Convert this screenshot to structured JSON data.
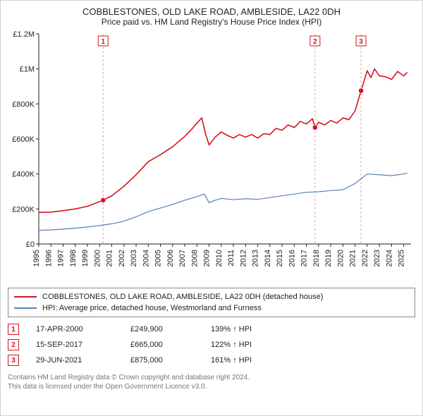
{
  "title_line1": "COBBLESTONES, OLD LAKE ROAD, AMBLESIDE, LA22 0DH",
  "title_line2": "Price paid vs. HM Land Registry's House Price Index (HPI)",
  "chart": {
    "type": "line",
    "background_color": "#ffffff",
    "axis_color": "#222222",
    "font_size_axis": 11,
    "font_size_title": 13,
    "xlim": [
      1995,
      2025.6
    ],
    "ylim": [
      0,
      1200000
    ],
    "yticks": [
      0,
      200000,
      400000,
      600000,
      800000,
      1000000,
      1200000
    ],
    "ytick_labels": [
      "£0",
      "£200K",
      "£400K",
      "£600K",
      "£800K",
      "£1M",
      "£1.2M"
    ],
    "xticks": [
      1995,
      1996,
      1997,
      1998,
      1999,
      2000,
      2001,
      2002,
      2003,
      2004,
      2005,
      2006,
      2007,
      2008,
      2009,
      2010,
      2011,
      2012,
      2013,
      2014,
      2015,
      2016,
      2017,
      2018,
      2019,
      2020,
      2021,
      2022,
      2023,
      2024,
      2025
    ],
    "series": [
      {
        "name": "COBBLESTONES, OLD LAKE ROAD, AMBLESIDE, LA22 0DH (detached house)",
        "color": "#d4141e",
        "line_width": 1.6,
        "points": [
          [
            1995,
            180000
          ],
          [
            1996,
            182000
          ],
          [
            1997,
            190000
          ],
          [
            1998,
            200000
          ],
          [
            1999,
            215000
          ],
          [
            2000.29,
            249900
          ],
          [
            2001,
            275000
          ],
          [
            2002,
            330000
          ],
          [
            2003,
            395000
          ],
          [
            2004,
            470000
          ],
          [
            2005,
            510000
          ],
          [
            2006,
            555000
          ],
          [
            2007,
            615000
          ],
          [
            2007.5,
            650000
          ],
          [
            2008,
            690000
          ],
          [
            2008.4,
            720000
          ],
          [
            2008.7,
            630000
          ],
          [
            2009,
            565000
          ],
          [
            2009.5,
            610000
          ],
          [
            2010,
            640000
          ],
          [
            2010.5,
            620000
          ],
          [
            2011,
            605000
          ],
          [
            2011.5,
            625000
          ],
          [
            2012,
            610000
          ],
          [
            2012.5,
            625000
          ],
          [
            2013,
            605000
          ],
          [
            2013.5,
            630000
          ],
          [
            2014,
            625000
          ],
          [
            2014.5,
            660000
          ],
          [
            2015,
            650000
          ],
          [
            2015.5,
            680000
          ],
          [
            2016,
            665000
          ],
          [
            2016.5,
            700000
          ],
          [
            2017,
            685000
          ],
          [
            2017.5,
            715000
          ],
          [
            2017.71,
            665000
          ],
          [
            2018,
            695000
          ],
          [
            2018.5,
            680000
          ],
          [
            2019,
            705000
          ],
          [
            2019.5,
            690000
          ],
          [
            2020,
            720000
          ],
          [
            2020.5,
            710000
          ],
          [
            2021,
            760000
          ],
          [
            2021.49,
            875000
          ],
          [
            2022,
            990000
          ],
          [
            2022.3,
            950000
          ],
          [
            2022.6,
            1000000
          ],
          [
            2023,
            960000
          ],
          [
            2023.5,
            955000
          ],
          [
            2024,
            940000
          ],
          [
            2024.5,
            985000
          ],
          [
            2025,
            960000
          ],
          [
            2025.3,
            980000
          ]
        ]
      },
      {
        "name": "HPI: Average price, detached house, Westmorland and Furness",
        "color": "#5b7fb5",
        "line_width": 1.2,
        "points": [
          [
            1995,
            78000
          ],
          [
            1996,
            80000
          ],
          [
            1997,
            85000
          ],
          [
            1998,
            90000
          ],
          [
            1999,
            97000
          ],
          [
            2000,
            105000
          ],
          [
            2001,
            115000
          ],
          [
            2002,
            130000
          ],
          [
            2003,
            155000
          ],
          [
            2004,
            185000
          ],
          [
            2005,
            205000
          ],
          [
            2006,
            225000
          ],
          [
            2007,
            250000
          ],
          [
            2008,
            270000
          ],
          [
            2008.6,
            285000
          ],
          [
            2009,
            235000
          ],
          [
            2009.5,
            250000
          ],
          [
            2010,
            260000
          ],
          [
            2011,
            253000
          ],
          [
            2012,
            258000
          ],
          [
            2013,
            255000
          ],
          [
            2014,
            265000
          ],
          [
            2015,
            275000
          ],
          [
            2016,
            285000
          ],
          [
            2017,
            295000
          ],
          [
            2018,
            298000
          ],
          [
            2019,
            305000
          ],
          [
            2020,
            310000
          ],
          [
            2021,
            345000
          ],
          [
            2022,
            400000
          ],
          [
            2023,
            395000
          ],
          [
            2024,
            390000
          ],
          [
            2025,
            400000
          ],
          [
            2025.3,
            405000
          ]
        ]
      }
    ],
    "event_markers": [
      {
        "n": "1",
        "x": 2000.29,
        "y": 249900,
        "color": "#d4141e"
      },
      {
        "n": "2",
        "x": 2017.71,
        "y": 665000,
        "color": "#d4141e"
      },
      {
        "n": "3",
        "x": 2021.49,
        "y": 875000,
        "color": "#d4141e"
      }
    ],
    "marker_line_color": "#e8a0a0",
    "marker_line_dash": "3,3"
  },
  "legend": {
    "items": [
      {
        "color": "#d4141e",
        "label": "COBBLESTONES, OLD LAKE ROAD, AMBLESIDE, LA22 0DH (detached house)"
      },
      {
        "color": "#5b7fb5",
        "label": "HPI: Average price, detached house, Westmorland and Furness"
      }
    ]
  },
  "event_table": {
    "rows": [
      {
        "n": "1",
        "color": "#d4141e",
        "date": "17-APR-2000",
        "price": "£249,900",
        "pct": "139% ↑ HPI"
      },
      {
        "n": "2",
        "color": "#d4141e",
        "date": "15-SEP-2017",
        "price": "£665,000",
        "pct": "122% ↑ HPI"
      },
      {
        "n": "3",
        "color": "#d4141e",
        "date": "29-JUN-2021",
        "price": "£875,000",
        "pct": "161% ↑ HPI"
      }
    ]
  },
  "footer_line1": "Contains HM Land Registry data © Crown copyright and database right 2024.",
  "footer_line2": "This data is licensed under the Open Government Licence v3.0."
}
